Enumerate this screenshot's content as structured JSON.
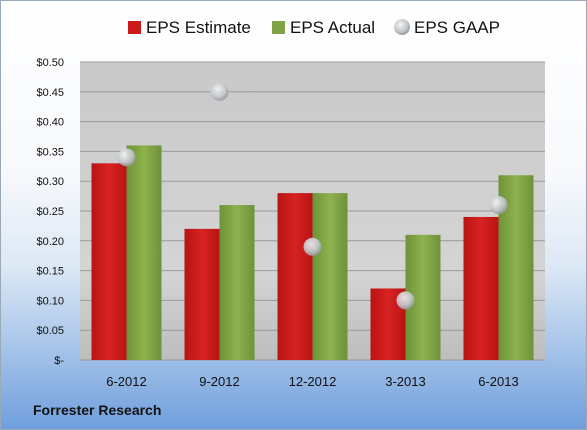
{
  "chart_data": {
    "type": "bar",
    "categories": [
      "6-2012",
      "9-2012",
      "12-2012",
      "3-2013",
      "6-2013"
    ],
    "series": [
      {
        "name": "EPS Estimate",
        "kind": "bar",
        "color": "#cc1a1a",
        "values": [
          0.33,
          0.22,
          0.28,
          0.12,
          0.24
        ]
      },
      {
        "name": "EPS Actual",
        "kind": "bar",
        "color": "#7fa345",
        "values": [
          0.36,
          0.26,
          0.28,
          0.21,
          0.31
        ]
      },
      {
        "name": "EPS GAAP",
        "kind": "scatter",
        "color": "#c8ccd0",
        "values": [
          0.34,
          0.45,
          0.19,
          0.1,
          0.26
        ]
      }
    ],
    "ylim": [
      0,
      0.5
    ],
    "yticks": [
      0,
      0.05,
      0.1,
      0.15,
      0.2,
      0.25,
      0.3,
      0.35,
      0.4,
      0.45,
      0.5
    ],
    "ytick_labels": [
      "$-",
      "$0.05",
      "$0.10",
      "$0.15",
      "$0.20",
      "$0.25",
      "$0.30",
      "$0.35",
      "$0.40",
      "$0.45",
      "$0.50"
    ],
    "grid": true,
    "legend": "top"
  },
  "source": "Forrester Research"
}
